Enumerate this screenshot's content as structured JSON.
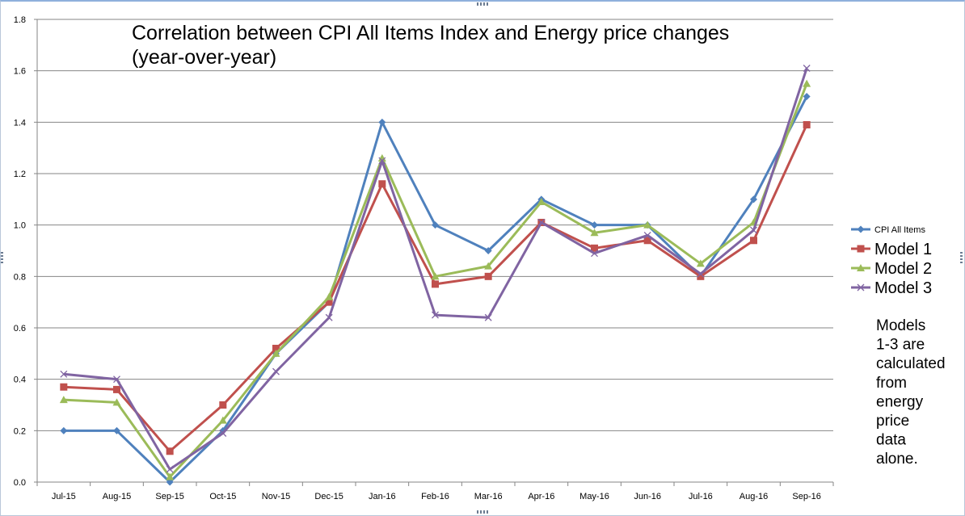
{
  "chart_data": {
    "type": "line",
    "title_lines": [
      "Correlation between CPI All Items Index and Energy price changes",
      "(year-over-year)"
    ],
    "categories": [
      "Jul-15",
      "Aug-15",
      "Sep-15",
      "Oct-15",
      "Nov-15",
      "Dec-15",
      "Jan-16",
      "Feb-16",
      "Mar-16",
      "Apr-16",
      "May-16",
      "Jun-16",
      "Jul-16",
      "Aug-16",
      "Sep-16"
    ],
    "ylim": [
      0,
      1.8
    ],
    "yticks": [
      "0.0",
      "0.2",
      "0.4",
      "0.6",
      "0.8",
      "1.0",
      "1.2",
      "1.4",
      "1.6",
      "1.8"
    ],
    "grid": true,
    "legend_position": "right",
    "series": [
      {
        "name": "CPI All Items",
        "color": "#4f81bd",
        "marker": "diamond",
        "values": [
          0.2,
          0.2,
          0.0,
          0.2,
          0.5,
          0.7,
          1.4,
          1.0,
          0.9,
          1.1,
          1.0,
          1.0,
          0.8,
          1.1,
          1.5
        ]
      },
      {
        "name": "Model 1",
        "color": "#c0504d",
        "marker": "square",
        "values": [
          0.37,
          0.36,
          0.12,
          0.3,
          0.52,
          0.7,
          1.16,
          0.77,
          0.8,
          1.01,
          0.91,
          0.94,
          0.8,
          0.94,
          1.39
        ]
      },
      {
        "name": "Model 2",
        "color": "#9bbb59",
        "marker": "triangle",
        "values": [
          0.32,
          0.31,
          0.02,
          0.24,
          0.5,
          0.72,
          1.26,
          0.8,
          0.84,
          1.09,
          0.97,
          1.0,
          0.85,
          1.01,
          1.55
        ]
      },
      {
        "name": "Model 3",
        "color": "#8064a2",
        "marker": "x",
        "values": [
          0.42,
          0.4,
          0.05,
          0.19,
          0.43,
          0.64,
          1.25,
          0.65,
          0.64,
          1.01,
          0.89,
          0.96,
          0.81,
          0.98,
          1.61
        ]
      }
    ],
    "annotation_lines": [
      "Models",
      "1-3 are",
      "calculated",
      "from",
      "energy",
      "price",
      "data",
      "alone."
    ]
  }
}
